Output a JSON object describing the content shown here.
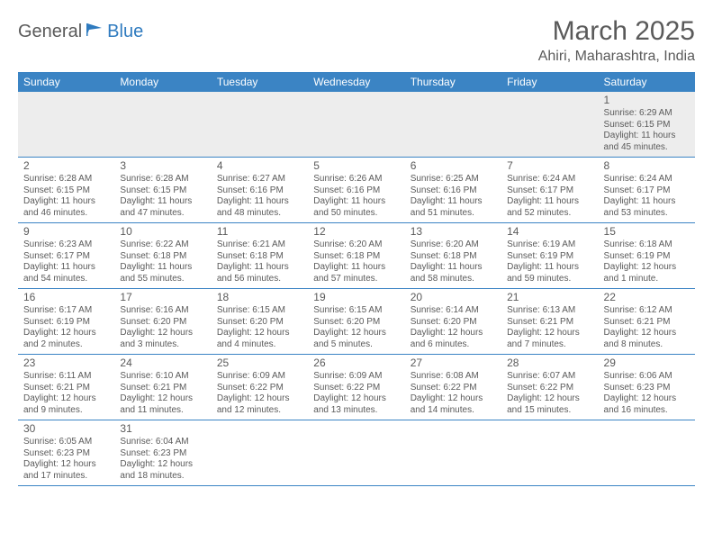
{
  "logo": {
    "general": "General",
    "blue": "Blue"
  },
  "title": "March 2025",
  "location": "Ahiri, Maharashtra, India",
  "colors": {
    "header_bg": "#3b84c4",
    "header_fg": "#ffffff",
    "row_divider": "#3b84c4",
    "first_row_bg": "#ededed",
    "text": "#5a5a5a",
    "logo_blue": "#2f7bbf"
  },
  "weekdays": [
    "Sunday",
    "Monday",
    "Tuesday",
    "Wednesday",
    "Thursday",
    "Friday",
    "Saturday"
  ],
  "weeks": [
    [
      null,
      null,
      null,
      null,
      null,
      null,
      {
        "n": "1",
        "sr": "Sunrise: 6:29 AM",
        "ss": "Sunset: 6:15 PM",
        "dl": "Daylight: 11 hours and 45 minutes."
      }
    ],
    [
      {
        "n": "2",
        "sr": "Sunrise: 6:28 AM",
        "ss": "Sunset: 6:15 PM",
        "dl": "Daylight: 11 hours and 46 minutes."
      },
      {
        "n": "3",
        "sr": "Sunrise: 6:28 AM",
        "ss": "Sunset: 6:15 PM",
        "dl": "Daylight: 11 hours and 47 minutes."
      },
      {
        "n": "4",
        "sr": "Sunrise: 6:27 AM",
        "ss": "Sunset: 6:16 PM",
        "dl": "Daylight: 11 hours and 48 minutes."
      },
      {
        "n": "5",
        "sr": "Sunrise: 6:26 AM",
        "ss": "Sunset: 6:16 PM",
        "dl": "Daylight: 11 hours and 50 minutes."
      },
      {
        "n": "6",
        "sr": "Sunrise: 6:25 AM",
        "ss": "Sunset: 6:16 PM",
        "dl": "Daylight: 11 hours and 51 minutes."
      },
      {
        "n": "7",
        "sr": "Sunrise: 6:24 AM",
        "ss": "Sunset: 6:17 PM",
        "dl": "Daylight: 11 hours and 52 minutes."
      },
      {
        "n": "8",
        "sr": "Sunrise: 6:24 AM",
        "ss": "Sunset: 6:17 PM",
        "dl": "Daylight: 11 hours and 53 minutes."
      }
    ],
    [
      {
        "n": "9",
        "sr": "Sunrise: 6:23 AM",
        "ss": "Sunset: 6:17 PM",
        "dl": "Daylight: 11 hours and 54 minutes."
      },
      {
        "n": "10",
        "sr": "Sunrise: 6:22 AM",
        "ss": "Sunset: 6:18 PM",
        "dl": "Daylight: 11 hours and 55 minutes."
      },
      {
        "n": "11",
        "sr": "Sunrise: 6:21 AM",
        "ss": "Sunset: 6:18 PM",
        "dl": "Daylight: 11 hours and 56 minutes."
      },
      {
        "n": "12",
        "sr": "Sunrise: 6:20 AM",
        "ss": "Sunset: 6:18 PM",
        "dl": "Daylight: 11 hours and 57 minutes."
      },
      {
        "n": "13",
        "sr": "Sunrise: 6:20 AM",
        "ss": "Sunset: 6:18 PM",
        "dl": "Daylight: 11 hours and 58 minutes."
      },
      {
        "n": "14",
        "sr": "Sunrise: 6:19 AM",
        "ss": "Sunset: 6:19 PM",
        "dl": "Daylight: 11 hours and 59 minutes."
      },
      {
        "n": "15",
        "sr": "Sunrise: 6:18 AM",
        "ss": "Sunset: 6:19 PM",
        "dl": "Daylight: 12 hours and 1 minute."
      }
    ],
    [
      {
        "n": "16",
        "sr": "Sunrise: 6:17 AM",
        "ss": "Sunset: 6:19 PM",
        "dl": "Daylight: 12 hours and 2 minutes."
      },
      {
        "n": "17",
        "sr": "Sunrise: 6:16 AM",
        "ss": "Sunset: 6:20 PM",
        "dl": "Daylight: 12 hours and 3 minutes."
      },
      {
        "n": "18",
        "sr": "Sunrise: 6:15 AM",
        "ss": "Sunset: 6:20 PM",
        "dl": "Daylight: 12 hours and 4 minutes."
      },
      {
        "n": "19",
        "sr": "Sunrise: 6:15 AM",
        "ss": "Sunset: 6:20 PM",
        "dl": "Daylight: 12 hours and 5 minutes."
      },
      {
        "n": "20",
        "sr": "Sunrise: 6:14 AM",
        "ss": "Sunset: 6:20 PM",
        "dl": "Daylight: 12 hours and 6 minutes."
      },
      {
        "n": "21",
        "sr": "Sunrise: 6:13 AM",
        "ss": "Sunset: 6:21 PM",
        "dl": "Daylight: 12 hours and 7 minutes."
      },
      {
        "n": "22",
        "sr": "Sunrise: 6:12 AM",
        "ss": "Sunset: 6:21 PM",
        "dl": "Daylight: 12 hours and 8 minutes."
      }
    ],
    [
      {
        "n": "23",
        "sr": "Sunrise: 6:11 AM",
        "ss": "Sunset: 6:21 PM",
        "dl": "Daylight: 12 hours and 9 minutes."
      },
      {
        "n": "24",
        "sr": "Sunrise: 6:10 AM",
        "ss": "Sunset: 6:21 PM",
        "dl": "Daylight: 12 hours and 11 minutes."
      },
      {
        "n": "25",
        "sr": "Sunrise: 6:09 AM",
        "ss": "Sunset: 6:22 PM",
        "dl": "Daylight: 12 hours and 12 minutes."
      },
      {
        "n": "26",
        "sr": "Sunrise: 6:09 AM",
        "ss": "Sunset: 6:22 PM",
        "dl": "Daylight: 12 hours and 13 minutes."
      },
      {
        "n": "27",
        "sr": "Sunrise: 6:08 AM",
        "ss": "Sunset: 6:22 PM",
        "dl": "Daylight: 12 hours and 14 minutes."
      },
      {
        "n": "28",
        "sr": "Sunrise: 6:07 AM",
        "ss": "Sunset: 6:22 PM",
        "dl": "Daylight: 12 hours and 15 minutes."
      },
      {
        "n": "29",
        "sr": "Sunrise: 6:06 AM",
        "ss": "Sunset: 6:23 PM",
        "dl": "Daylight: 12 hours and 16 minutes."
      }
    ],
    [
      {
        "n": "30",
        "sr": "Sunrise: 6:05 AM",
        "ss": "Sunset: 6:23 PM",
        "dl": "Daylight: 12 hours and 17 minutes."
      },
      {
        "n": "31",
        "sr": "Sunrise: 6:04 AM",
        "ss": "Sunset: 6:23 PM",
        "dl": "Daylight: 12 hours and 18 minutes."
      },
      null,
      null,
      null,
      null,
      null
    ]
  ]
}
